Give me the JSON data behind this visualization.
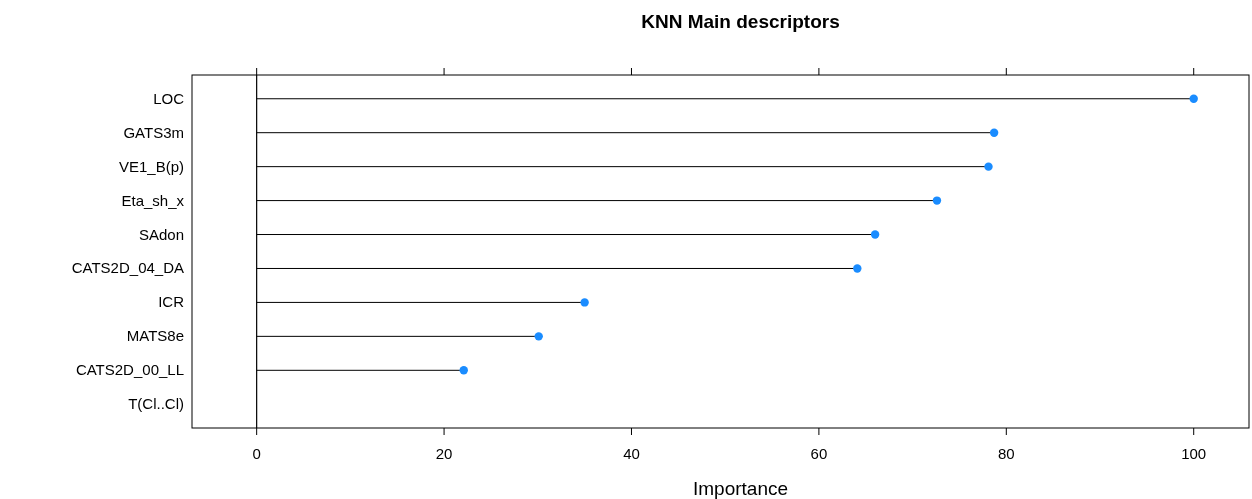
{
  "chart_data": {
    "type": "lollipop",
    "title": "KNN Main descriptors",
    "xlabel": "Importance",
    "orientation": "horizontal",
    "categories": [
      "LOC",
      "GATS3m",
      "VE1_B(p)",
      "Eta_sh_x",
      "SAdon",
      "CATS2D_04_DA",
      "ICR",
      "MATS8e",
      "CATS2D_00_LL",
      "T(Cl..Cl)"
    ],
    "values": [
      100,
      78.7,
      78.1,
      72.6,
      66.0,
      64.1,
      35.0,
      30.1,
      22.1,
      null
    ],
    "color": "#1a8cff",
    "xlim": [
      -6.9,
      105.9
    ],
    "xticks": [
      0,
      20,
      40,
      60,
      80,
      100
    ],
    "marker": "circle",
    "grid": false,
    "ref_lines": [
      {
        "axis": "x",
        "value": 0
      }
    ]
  }
}
